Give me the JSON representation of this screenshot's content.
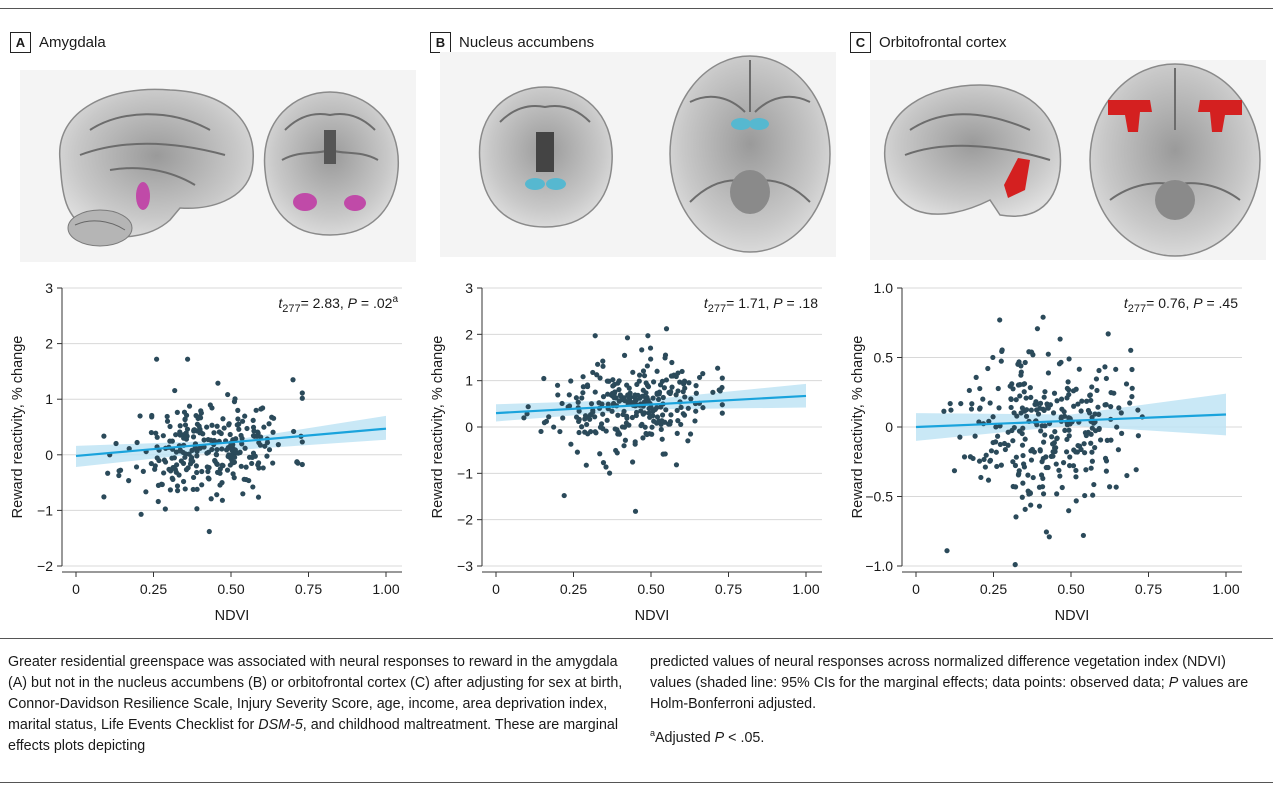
{
  "panels": [
    {
      "letter": "A",
      "title": "Amygdala",
      "stat": {
        "t": "t",
        "df": "277",
        "text": "= 2.83, ",
        "p": "P",
        "ptext": " = .02",
        "sup": "a"
      }
    },
    {
      "letter": "B",
      "title": "Nucleus accumbens",
      "stat": {
        "t": "t",
        "df": "277",
        "text": "= 1.71, ",
        "p": "P",
        "ptext": " = .18",
        "sup": ""
      }
    },
    {
      "letter": "C",
      "title": "Orbitofrontal cortex",
      "stat": {
        "t": "t",
        "df": "277",
        "text": "= 0.76, ",
        "p": "P",
        "ptext": " = .45",
        "sup": ""
      }
    }
  ],
  "caption": {
    "left_1": "Greater residential greenspace was associated with neural responses to reward in the amygdala (A) but not in the nucleus accumbens (B) or orbitofrontal cortex (C) after adjusting for sex at birth, Connor-Davidson Resilience Scale, Injury Severity Score, age, income, area deprivation index, marital status, Life Events Checklist for ",
    "left_dsm": "DSM-5",
    "left_2": ", and childhood maltreatment. These are marginal effects plots depicting",
    "right_1": "predicted values of neural responses across normalized difference vegetation index (NDVI) values (shaded line: 95% CIs for the marginal effects; data points: observed data; ",
    "right_p": "P",
    "right_2": " values are Holm-Bonferroni adjusted.",
    "note_sup": "a",
    "note_1": "Adjusted ",
    "note_p": "P",
    "note_2": " < .05."
  },
  "colors": {
    "dot": "#2b4a5a",
    "line": "#1aa3dc",
    "ci": "#bfe4f5",
    "amygdala": "#c04aa8",
    "accumbens": "#56b8d0",
    "ofc": "#d42020"
  },
  "chart_data": [
    {
      "type": "scatter",
      "panel": "A",
      "xlabel": "NDVI",
      "ylabel": "Reward reactivity, % change",
      "xlim": [
        0,
        1
      ],
      "ylim": [
        -2,
        3
      ],
      "xticks": [
        0,
        0.25,
        0.5,
        0.75,
        1.0
      ],
      "xtick_labels": [
        "0",
        "0.25",
        "0.50",
        "0.75",
        "1.00"
      ],
      "yticks": [
        -2,
        -1,
        0,
        1,
        2,
        3
      ],
      "ytick_labels": [
        "−2",
        "−1",
        "0",
        "1",
        "2",
        "3"
      ],
      "fit_line": {
        "x": [
          0,
          1
        ],
        "y": [
          -0.02,
          0.47
        ]
      },
      "ci": {
        "x": [
          0,
          0.5,
          1
        ],
        "lower": [
          -0.22,
          0.08,
          0.27
        ],
        "upper": [
          0.16,
          0.26,
          0.7
        ]
      },
      "highlight_points": [
        [
          0.26,
          1.72
        ],
        [
          0.36,
          1.72
        ],
        [
          0.21,
          -1.07
        ],
        [
          0.43,
          -1.38
        ],
        [
          0.7,
          1.35
        ],
        [
          0.39,
          -0.97
        ]
      ],
      "n_points": 280,
      "center": [
        0.43,
        0.13
      ],
      "spread": [
        0.13,
        0.42
      ],
      "slope": 0.49,
      "seed": 11
    },
    {
      "type": "scatter",
      "panel": "B",
      "xlabel": "NDVI",
      "ylabel": "Reward reactivity, % change",
      "xlim": [
        0,
        1
      ],
      "ylim": [
        -3,
        3
      ],
      "xticks": [
        0,
        0.25,
        0.5,
        0.75,
        1.0
      ],
      "xtick_labels": [
        "0",
        "0.25",
        "0.50",
        "0.75",
        "1.00"
      ],
      "yticks": [
        -3,
        -2,
        -1,
        0,
        1,
        2,
        3
      ],
      "ytick_labels": [
        "−3",
        "−2",
        "−1",
        "0",
        "1",
        "2",
        "3"
      ],
      "fit_line": {
        "x": [
          0,
          1
        ],
        "y": [
          0.3,
          0.67
        ]
      },
      "ci": {
        "x": [
          0,
          0.5,
          1
        ],
        "lower": [
          0.12,
          0.38,
          0.42
        ],
        "upper": [
          0.49,
          0.6,
          0.93
        ]
      },
      "highlight_points": [
        [
          0.22,
          -1.48
        ],
        [
          0.45,
          -1.82
        ],
        [
          0.32,
          1.97
        ],
        [
          0.55,
          2.12
        ],
        [
          0.49,
          1.97
        ],
        [
          0.72,
          0.8
        ]
      ],
      "n_points": 280,
      "center": [
        0.43,
        0.45
      ],
      "spread": [
        0.13,
        0.48
      ],
      "slope": 0.37,
      "seed": 23
    },
    {
      "type": "scatter",
      "panel": "C",
      "xlabel": "NDVI",
      "ylabel": "Reward reactivity, % change",
      "xlim": [
        0,
        1
      ],
      "ylim": [
        -1.0,
        1.0
      ],
      "xticks": [
        0,
        0.25,
        0.5,
        0.75,
        1.0
      ],
      "xtick_labels": [
        "0",
        "0.25",
        "0.50",
        "0.75",
        "1.00"
      ],
      "yticks": [
        -1.0,
        -0.5,
        0,
        0.5,
        1.0
      ],
      "ytick_labels": [
        "−1.0",
        "−0.5",
        "0",
        "0.5",
        "1.0"
      ],
      "fit_line": {
        "x": [
          0,
          1
        ],
        "y": [
          0.0,
          0.09
        ]
      },
      "ci": {
        "x": [
          0,
          0.5,
          1
        ],
        "lower": [
          -0.1,
          0.01,
          -0.06
        ],
        "upper": [
          0.1,
          0.09,
          0.24
        ]
      },
      "highlight_points": [
        [
          0.1,
          -0.89
        ],
        [
          0.32,
          -0.99
        ],
        [
          0.27,
          0.77
        ],
        [
          0.41,
          0.79
        ],
        [
          0.62,
          0.67
        ],
        [
          0.54,
          -0.78
        ],
        [
          0.43,
          -0.79
        ]
      ],
      "n_points": 300,
      "center": [
        0.42,
        0.03
      ],
      "spread": [
        0.13,
        0.28
      ],
      "slope": 0.09,
      "seed": 37
    }
  ]
}
